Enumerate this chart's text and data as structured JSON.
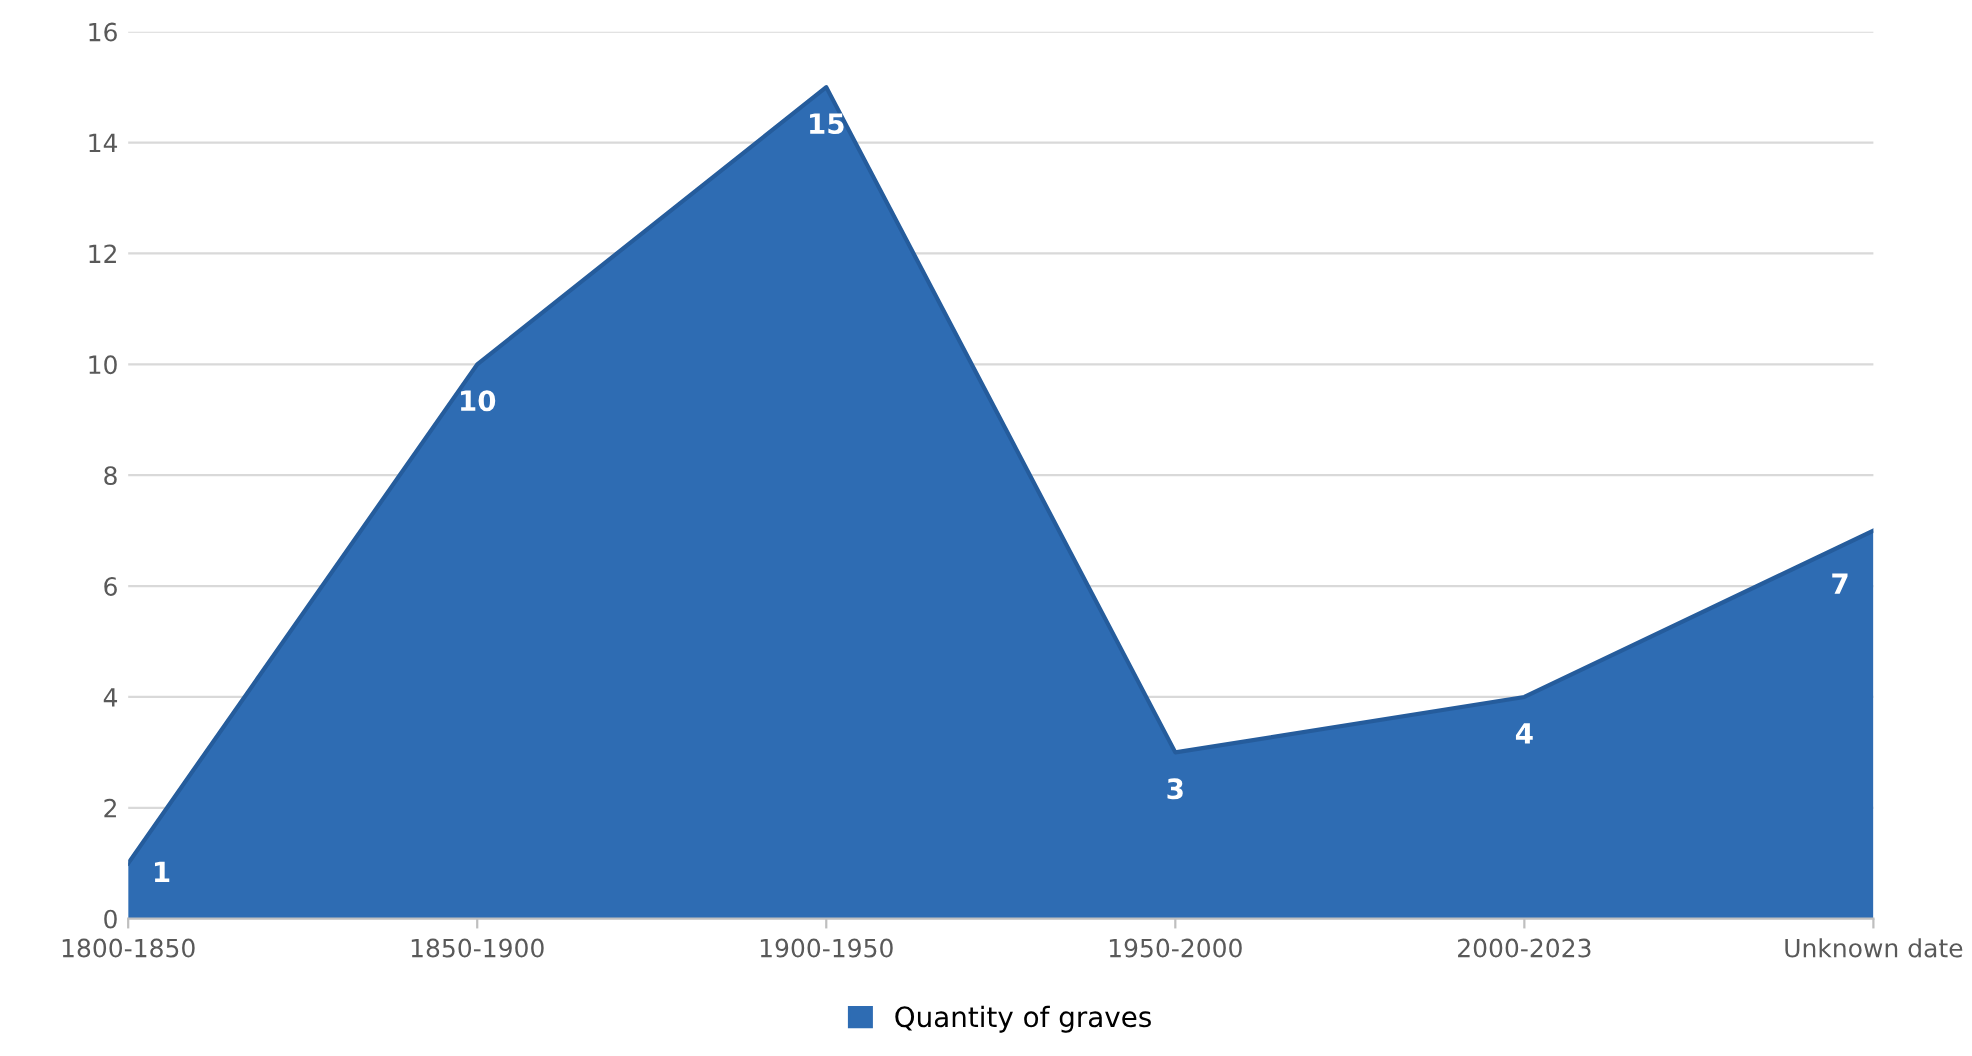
{
  "chart_data": {
    "type": "area",
    "categories": [
      "1800-1850",
      "1850-1900",
      "1900-1950",
      "1950-2000",
      "2000-2023",
      "Unknown date"
    ],
    "series": [
      {
        "name": "Quantity of graves",
        "color": "#2e6cb3",
        "values": [
          1,
          10,
          15,
          3,
          4,
          7
        ]
      }
    ],
    "ylim": [
      0,
      16
    ],
    "yticks": [
      0,
      2,
      4,
      6,
      8,
      10,
      12,
      14,
      16
    ],
    "grid": "y",
    "legend": "bottom",
    "data_labels": true
  }
}
